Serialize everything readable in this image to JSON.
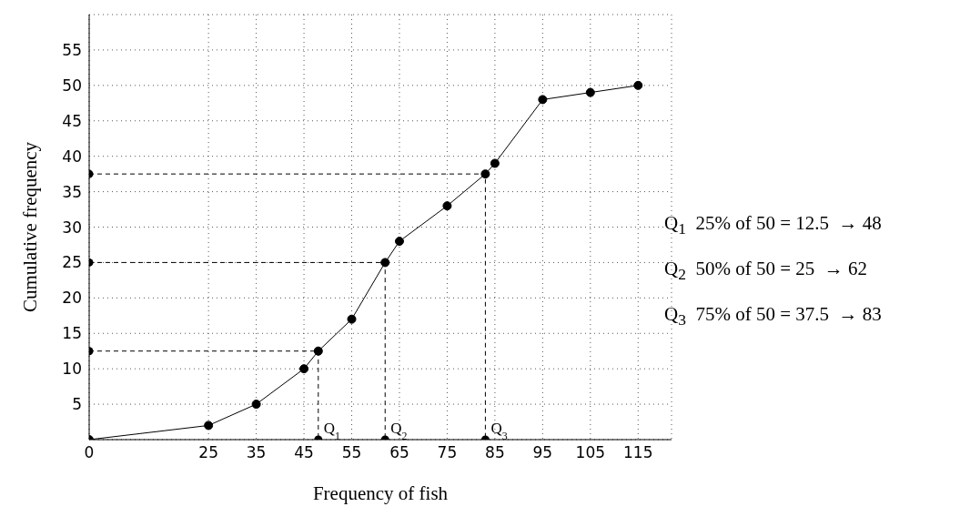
{
  "chart_data": {
    "type": "line",
    "xlabel": "Frequency of fish",
    "ylabel": "Cumulative frequency",
    "xlim": [
      0,
      122
    ],
    "ylim": [
      0,
      60
    ],
    "xticks": [
      0,
      25,
      35,
      45,
      55,
      65,
      75,
      85,
      95,
      105,
      115
    ],
    "yticks": [
      5,
      10,
      15,
      20,
      25,
      30,
      35,
      40,
      45,
      50,
      55
    ],
    "grid": true,
    "series": [
      {
        "color": "#000000",
        "marker": "circle",
        "line_style": "solid",
        "x": [
          0,
          25,
          35,
          45,
          48,
          55,
          62,
          65,
          75,
          83,
          85,
          95,
          105,
          115
        ],
        "values": [
          0,
          2,
          5,
          10,
          12.5,
          17,
          25,
          28,
          33,
          37.5,
          39,
          48,
          49,
          50
        ]
      },
      {
        "type": "line",
        "color": "#000000",
        "marker": "none",
        "line_style": "dashed",
        "x": [
          0,
          48,
          48
        ],
        "values": [
          12.5,
          12.5,
          0
        ]
      },
      {
        "type": "line",
        "color": "#000000",
        "marker": "none",
        "line_style": "dashed",
        "x": [
          0,
          62,
          62
        ],
        "values": [
          25,
          25,
          0
        ]
      },
      {
        "type": "line",
        "color": "#000000",
        "marker": "none",
        "line_style": "dashed",
        "x": [
          0,
          83,
          83
        ],
        "values": [
          37.5,
          37.5,
          0
        ]
      },
      {
        "type": "scatter",
        "color": "#000000",
        "marker": "circle",
        "x": [
          0,
          0,
          0,
          48,
          62,
          83
        ],
        "values": [
          12.5,
          25,
          37.5,
          0,
          0,
          0
        ]
      }
    ],
    "annotations": [
      {
        "text": "Q$_{1}$",
        "x": 48,
        "y": 0
      },
      {
        "text": "Q$_{2}$",
        "x": 62,
        "y": 0
      },
      {
        "text": "Q$_{3}$",
        "x": 83,
        "y": 0
      },
      "Q$_{1}$  25% of 50 = 12.5  → 48",
      "Q$_{2}$  50% of 50 = 25  → 62",
      "Q$_{3}$  75% of 50 = 37.5  → 83"
    ]
  }
}
